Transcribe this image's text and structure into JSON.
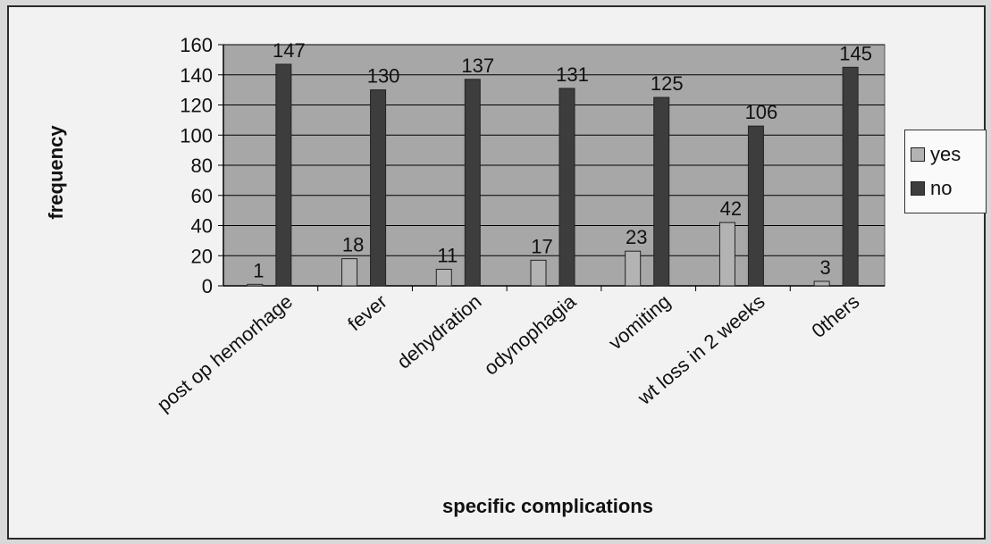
{
  "chart_data": {
    "type": "bar",
    "categories": [
      "post op hemorhage",
      "fever",
      "dehydration",
      "odynophagia",
      "vomiting",
      "wt loss in 2 weeks",
      "0thers"
    ],
    "series": [
      {
        "name": "yes",
        "values": [
          1,
          18,
          11,
          17,
          23,
          42,
          3
        ],
        "color": "#b3b3b3"
      },
      {
        "name": "no",
        "values": [
          147,
          130,
          137,
          131,
          125,
          106,
          145
        ],
        "color": "#3d3d3d"
      }
    ],
    "xlabel": "specific complications",
    "ylabel": "frequency",
    "ylim": [
      0,
      160
    ],
    "yticks": [
      0,
      20,
      40,
      60,
      80,
      100,
      120,
      140,
      160
    ],
    "grid": true,
    "legend_position": "right",
    "plot_background": "#a7a7a7"
  }
}
